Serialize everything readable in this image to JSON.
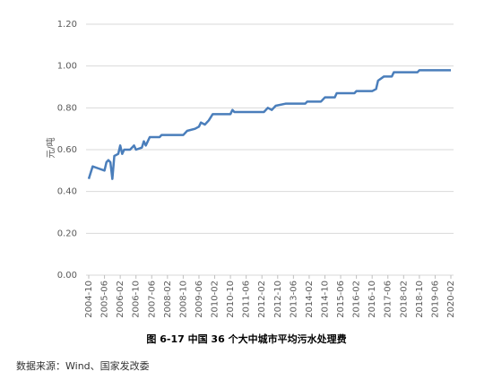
{
  "chart_data": {
    "type": "line",
    "title": "图 6-17 中国 36 个大中城市平均污水处理费",
    "source": "数据来源：Wind、国家发改委",
    "ylabel": "元/吨",
    "x": [
      "2004-10",
      "2004-12",
      "2005-03",
      "2005-06",
      "2005-07",
      "2005-08",
      "2005-09",
      "2005-10",
      "2005-11",
      "2006-01",
      "2006-02",
      "2006-03",
      "2006-04",
      "2006-07",
      "2006-09",
      "2006-10",
      "2007-01",
      "2007-02",
      "2007-03",
      "2007-05",
      "2007-10",
      "2007-11",
      "2008-10",
      "2008-12",
      "2009-04",
      "2009-06",
      "2009-07",
      "2009-09",
      "2009-11",
      "2010-01",
      "2010-10",
      "2010-11",
      "2010-12",
      "2012-03",
      "2012-05",
      "2012-07",
      "2012-09",
      "2013-02",
      "2013-12",
      "2014-01",
      "2014-08",
      "2014-10",
      "2015-03",
      "2015-04",
      "2016-01",
      "2016-02",
      "2016-10",
      "2016-12",
      "2017-01",
      "2017-04",
      "2017-08",
      "2017-09",
      "2018-09",
      "2018-10",
      "2020-02"
    ],
    "series": [
      {
        "name": "平均污水处理费",
        "color": "#4a7ebb",
        "values": [
          0.46,
          0.52,
          0.51,
          0.5,
          0.54,
          0.55,
          0.54,
          0.46,
          0.57,
          0.58,
          0.62,
          0.58,
          0.6,
          0.6,
          0.62,
          0.6,
          0.61,
          0.64,
          0.62,
          0.66,
          0.66,
          0.67,
          0.67,
          0.69,
          0.7,
          0.71,
          0.73,
          0.72,
          0.74,
          0.77,
          0.77,
          0.79,
          0.78,
          0.78,
          0.8,
          0.79,
          0.81,
          0.82,
          0.82,
          0.83,
          0.83,
          0.85,
          0.85,
          0.87,
          0.87,
          0.88,
          0.88,
          0.89,
          0.93,
          0.95,
          0.95,
          0.97,
          0.97,
          0.98,
          0.98
        ]
      }
    ],
    "xlim": [
      "2004-10",
      "2020-02"
    ],
    "xticks": [
      "2004-10",
      "2005-06",
      "2006-02",
      "2006-10",
      "2007-06",
      "2008-02",
      "2008-10",
      "2009-06",
      "2010-02",
      "2010-10",
      "2011-06",
      "2012-02",
      "2012-10",
      "2013-06",
      "2014-02",
      "2014-10",
      "2015-06",
      "2016-02",
      "2016-10",
      "2017-06",
      "2018-02",
      "2018-10",
      "2019-06",
      "2020-02"
    ],
    "ylim": [
      0,
      1.2
    ],
    "yticks": [
      {
        "value": 0,
        "label": "0.00"
      },
      {
        "value": 0.2,
        "label": "0.20"
      },
      {
        "value": 0.4,
        "label": "0.40"
      },
      {
        "value": 0.6,
        "label": "0.60"
      },
      {
        "value": 0.8,
        "label": "0.80"
      },
      {
        "value": 1.0,
        "label": "1.00"
      },
      {
        "value": 1.2,
        "label": "1.20"
      }
    ],
    "grid": true
  }
}
